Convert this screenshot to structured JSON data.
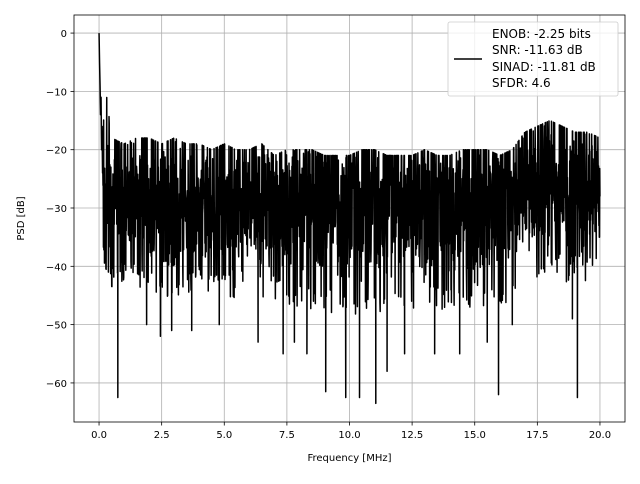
{
  "chart_data": {
    "type": "line",
    "xlabel": "Frequency [MHz]",
    "ylabel": "PSD [dB]",
    "xlim": [
      -1.0,
      21.0
    ],
    "ylim": [
      -66.7,
      3.1
    ],
    "grid": true,
    "legend_placement": "top-right",
    "line_color": "#000000",
    "x_ticks": [
      "0.0",
      "2.5",
      "5.0",
      "7.5",
      "10.0",
      "12.5",
      "15.0",
      "17.5",
      "20.0"
    ],
    "x_tick_values": [
      0,
      2.5,
      5,
      7.5,
      10,
      12.5,
      15,
      17.5,
      20
    ],
    "y_ticks": [
      "0",
      "−10",
      "−20",
      "−30",
      "−40",
      "−50",
      "−60"
    ],
    "y_tick_values": [
      0,
      -10,
      -20,
      -30,
      -40,
      -50,
      -60
    ],
    "legend": [
      "ENOB: -2.25 bits",
      "SNR: -11.63 dB",
      "SINAD: -11.81 dB",
      "SFDR: 4.6"
    ],
    "envelope_x": [
      0,
      0.5,
      1,
      1.5,
      2,
      2.5,
      3,
      3.5,
      4,
      4.5,
      5,
      5.5,
      6,
      6.5,
      7,
      7.5,
      8,
      8.5,
      9,
      9.5,
      10,
      10.5,
      11,
      11.5,
      12,
      12.5,
      13,
      13.5,
      14,
      14.5,
      15,
      15.5,
      16,
      16.5,
      17,
      17.5,
      18,
      18.5,
      19,
      19.5,
      20
    ],
    "envelope_upper": [
      0,
      -18,
      -19,
      -18,
      -18,
      -19,
      -18,
      -19,
      -19,
      -20,
      -19,
      -20,
      -20,
      -19,
      -21,
      -20,
      -20,
      -20,
      -21,
      -21,
      -21,
      -20,
      -20,
      -21,
      -21,
      -21,
      -20,
      -21,
      -21,
      -20,
      -20,
      -20,
      -21,
      -20,
      -17,
      -16,
      -15,
      -16,
      -17,
      -17,
      -18
    ],
    "envelope_lower": [
      -36,
      -44,
      -43,
      -44,
      -44,
      -45,
      -46,
      -45,
      -44,
      -45,
      -45,
      -46,
      -46,
      -47,
      -46,
      -47,
      -47,
      -48,
      -48,
      -49,
      -49,
      -49,
      -49,
      -49,
      -48,
      -48,
      -47,
      -47,
      -48,
      -48,
      -48,
      -48,
      -47,
      -46,
      -42,
      -42,
      -41,
      -42,
      -44,
      -43,
      -37
    ],
    "dips": [
      [
        0.75,
        -62.5
      ],
      [
        1.9,
        -50
      ],
      [
        2.45,
        -52
      ],
      [
        2.9,
        -51
      ],
      [
        3.7,
        -51
      ],
      [
        4.8,
        -50
      ],
      [
        6.35,
        -53
      ],
      [
        7.35,
        -55
      ],
      [
        7.8,
        -53
      ],
      [
        8.3,
        -55
      ],
      [
        9.05,
        -61.5
      ],
      [
        9.85,
        -62.5
      ],
      [
        10.4,
        -62.5
      ],
      [
        11.05,
        -63.5
      ],
      [
        11.5,
        -58
      ],
      [
        12.2,
        -55
      ],
      [
        13.4,
        -55
      ],
      [
        14.4,
        -55
      ],
      [
        15.5,
        -53
      ],
      [
        15.95,
        -62
      ],
      [
        16.5,
        -50
      ],
      [
        19.1,
        -62.5
      ],
      [
        18.9,
        -49
      ]
    ]
  }
}
